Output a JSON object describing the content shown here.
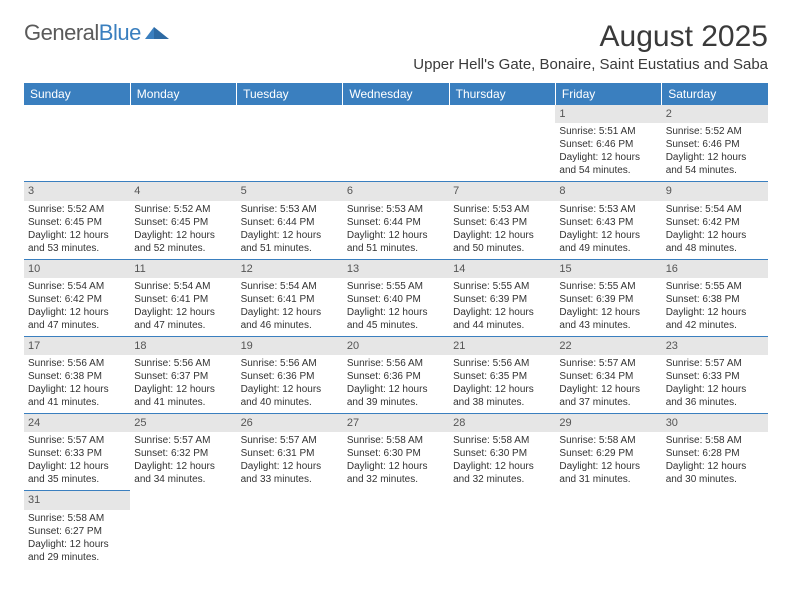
{
  "logo": {
    "word1": "General",
    "word2": "Blue",
    "mark_color": "#3a7fbf"
  },
  "title": {
    "month_year": "August 2025",
    "location": "Upper Hell's Gate, Bonaire, Saint Eustatius and Saba"
  },
  "colors": {
    "header_bg": "#3a7fbf",
    "header_text": "#ffffff",
    "daynum_bg": "#e6e6e6",
    "row_border": "#3a7fbf",
    "text": "#333333"
  },
  "day_headers": [
    "Sunday",
    "Monday",
    "Tuesday",
    "Wednesday",
    "Thursday",
    "Friday",
    "Saturday"
  ],
  "weeks": [
    [
      null,
      null,
      null,
      null,
      null,
      {
        "n": "1",
        "sunrise": "Sunrise: 5:51 AM",
        "sunset": "Sunset: 6:46 PM",
        "day1": "Daylight: 12 hours",
        "day2": "and 54 minutes."
      },
      {
        "n": "2",
        "sunrise": "Sunrise: 5:52 AM",
        "sunset": "Sunset: 6:46 PM",
        "day1": "Daylight: 12 hours",
        "day2": "and 54 minutes."
      }
    ],
    [
      {
        "n": "3",
        "sunrise": "Sunrise: 5:52 AM",
        "sunset": "Sunset: 6:45 PM",
        "day1": "Daylight: 12 hours",
        "day2": "and 53 minutes."
      },
      {
        "n": "4",
        "sunrise": "Sunrise: 5:52 AM",
        "sunset": "Sunset: 6:45 PM",
        "day1": "Daylight: 12 hours",
        "day2": "and 52 minutes."
      },
      {
        "n": "5",
        "sunrise": "Sunrise: 5:53 AM",
        "sunset": "Sunset: 6:44 PM",
        "day1": "Daylight: 12 hours",
        "day2": "and 51 minutes."
      },
      {
        "n": "6",
        "sunrise": "Sunrise: 5:53 AM",
        "sunset": "Sunset: 6:44 PM",
        "day1": "Daylight: 12 hours",
        "day2": "and 51 minutes."
      },
      {
        "n": "7",
        "sunrise": "Sunrise: 5:53 AM",
        "sunset": "Sunset: 6:43 PM",
        "day1": "Daylight: 12 hours",
        "day2": "and 50 minutes."
      },
      {
        "n": "8",
        "sunrise": "Sunrise: 5:53 AM",
        "sunset": "Sunset: 6:43 PM",
        "day1": "Daylight: 12 hours",
        "day2": "and 49 minutes."
      },
      {
        "n": "9",
        "sunrise": "Sunrise: 5:54 AM",
        "sunset": "Sunset: 6:42 PM",
        "day1": "Daylight: 12 hours",
        "day2": "and 48 minutes."
      }
    ],
    [
      {
        "n": "10",
        "sunrise": "Sunrise: 5:54 AM",
        "sunset": "Sunset: 6:42 PM",
        "day1": "Daylight: 12 hours",
        "day2": "and 47 minutes."
      },
      {
        "n": "11",
        "sunrise": "Sunrise: 5:54 AM",
        "sunset": "Sunset: 6:41 PM",
        "day1": "Daylight: 12 hours",
        "day2": "and 47 minutes."
      },
      {
        "n": "12",
        "sunrise": "Sunrise: 5:54 AM",
        "sunset": "Sunset: 6:41 PM",
        "day1": "Daylight: 12 hours",
        "day2": "and 46 minutes."
      },
      {
        "n": "13",
        "sunrise": "Sunrise: 5:55 AM",
        "sunset": "Sunset: 6:40 PM",
        "day1": "Daylight: 12 hours",
        "day2": "and 45 minutes."
      },
      {
        "n": "14",
        "sunrise": "Sunrise: 5:55 AM",
        "sunset": "Sunset: 6:39 PM",
        "day1": "Daylight: 12 hours",
        "day2": "and 44 minutes."
      },
      {
        "n": "15",
        "sunrise": "Sunrise: 5:55 AM",
        "sunset": "Sunset: 6:39 PM",
        "day1": "Daylight: 12 hours",
        "day2": "and 43 minutes."
      },
      {
        "n": "16",
        "sunrise": "Sunrise: 5:55 AM",
        "sunset": "Sunset: 6:38 PM",
        "day1": "Daylight: 12 hours",
        "day2": "and 42 minutes."
      }
    ],
    [
      {
        "n": "17",
        "sunrise": "Sunrise: 5:56 AM",
        "sunset": "Sunset: 6:38 PM",
        "day1": "Daylight: 12 hours",
        "day2": "and 41 minutes."
      },
      {
        "n": "18",
        "sunrise": "Sunrise: 5:56 AM",
        "sunset": "Sunset: 6:37 PM",
        "day1": "Daylight: 12 hours",
        "day2": "and 41 minutes."
      },
      {
        "n": "19",
        "sunrise": "Sunrise: 5:56 AM",
        "sunset": "Sunset: 6:36 PM",
        "day1": "Daylight: 12 hours",
        "day2": "and 40 minutes."
      },
      {
        "n": "20",
        "sunrise": "Sunrise: 5:56 AM",
        "sunset": "Sunset: 6:36 PM",
        "day1": "Daylight: 12 hours",
        "day2": "and 39 minutes."
      },
      {
        "n": "21",
        "sunrise": "Sunrise: 5:56 AM",
        "sunset": "Sunset: 6:35 PM",
        "day1": "Daylight: 12 hours",
        "day2": "and 38 minutes."
      },
      {
        "n": "22",
        "sunrise": "Sunrise: 5:57 AM",
        "sunset": "Sunset: 6:34 PM",
        "day1": "Daylight: 12 hours",
        "day2": "and 37 minutes."
      },
      {
        "n": "23",
        "sunrise": "Sunrise: 5:57 AM",
        "sunset": "Sunset: 6:33 PM",
        "day1": "Daylight: 12 hours",
        "day2": "and 36 minutes."
      }
    ],
    [
      {
        "n": "24",
        "sunrise": "Sunrise: 5:57 AM",
        "sunset": "Sunset: 6:33 PM",
        "day1": "Daylight: 12 hours",
        "day2": "and 35 minutes."
      },
      {
        "n": "25",
        "sunrise": "Sunrise: 5:57 AM",
        "sunset": "Sunset: 6:32 PM",
        "day1": "Daylight: 12 hours",
        "day2": "and 34 minutes."
      },
      {
        "n": "26",
        "sunrise": "Sunrise: 5:57 AM",
        "sunset": "Sunset: 6:31 PM",
        "day1": "Daylight: 12 hours",
        "day2": "and 33 minutes."
      },
      {
        "n": "27",
        "sunrise": "Sunrise: 5:58 AM",
        "sunset": "Sunset: 6:30 PM",
        "day1": "Daylight: 12 hours",
        "day2": "and 32 minutes."
      },
      {
        "n": "28",
        "sunrise": "Sunrise: 5:58 AM",
        "sunset": "Sunset: 6:30 PM",
        "day1": "Daylight: 12 hours",
        "day2": "and 32 minutes."
      },
      {
        "n": "29",
        "sunrise": "Sunrise: 5:58 AM",
        "sunset": "Sunset: 6:29 PM",
        "day1": "Daylight: 12 hours",
        "day2": "and 31 minutes."
      },
      {
        "n": "30",
        "sunrise": "Sunrise: 5:58 AM",
        "sunset": "Sunset: 6:28 PM",
        "day1": "Daylight: 12 hours",
        "day2": "and 30 minutes."
      }
    ],
    [
      {
        "n": "31",
        "sunrise": "Sunrise: 5:58 AM",
        "sunset": "Sunset: 6:27 PM",
        "day1": "Daylight: 12 hours",
        "day2": "and 29 minutes."
      },
      null,
      null,
      null,
      null,
      null,
      null
    ]
  ]
}
